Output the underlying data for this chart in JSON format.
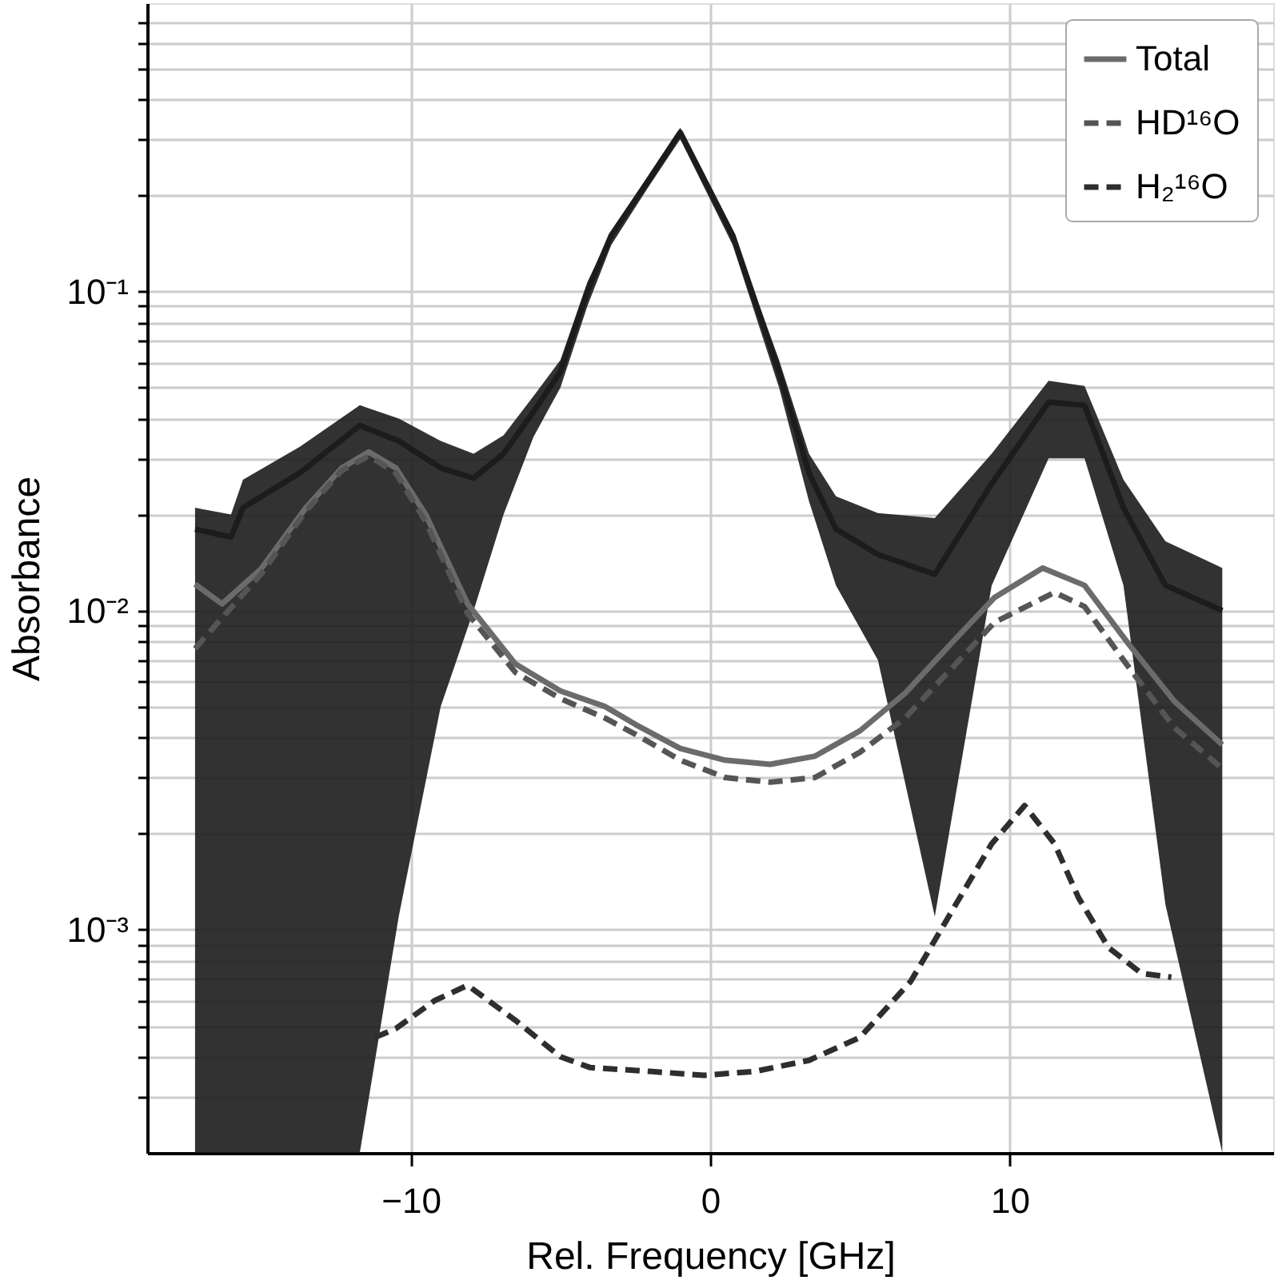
{
  "chart_data": {
    "type": "line",
    "xlabel": "Rel. Frequency [GHz]",
    "ylabel": "Absorbance",
    "xlim": [
      -18.8,
      18.8
    ],
    "xticks": [
      -10,
      0,
      10
    ],
    "ylim": [
      0.0002,
      0.8
    ],
    "yticks": [
      {
        "value": 0.0003,
        "label": null
      },
      {
        "value": 0.0004,
        "label": null
      },
      {
        "value": 0.0005,
        "label": null
      },
      {
        "value": 0.0006,
        "label": null
      },
      {
        "value": 0.0007,
        "label": null
      },
      {
        "value": 0.0008,
        "label": null
      },
      {
        "value": 0.0009,
        "label": null
      },
      {
        "value": 0.001,
        "label": "10⁻³"
      },
      {
        "value": 0.002,
        "label": null
      },
      {
        "value": 0.003,
        "label": null
      },
      {
        "value": 0.004,
        "label": null
      },
      {
        "value": 0.005,
        "label": null
      },
      {
        "value": 0.006,
        "label": null
      },
      {
        "value": 0.007,
        "label": null
      },
      {
        "value": 0.008,
        "label": null
      },
      {
        "value": 0.009,
        "label": null
      },
      {
        "value": 0.01,
        "label": "10⁻²"
      },
      {
        "value": 0.02,
        "label": null
      },
      {
        "value": 0.03,
        "label": null
      },
      {
        "value": 0.04,
        "label": null
      },
      {
        "value": 0.05,
        "label": null
      },
      {
        "value": 0.06,
        "label": null
      },
      {
        "value": 0.07,
        "label": null
      },
      {
        "value": 0.08,
        "label": null
      },
      {
        "value": 0.09,
        "label": null
      },
      {
        "value": 0.1,
        "label": "10⁻¹"
      },
      {
        "value": 0.2,
        "label": null
      },
      {
        "value": 0.3,
        "label": null
      },
      {
        "value": 0.4,
        "label": null
      },
      {
        "value": 0.5,
        "label": null
      },
      {
        "value": 0.6,
        "label": null
      },
      {
        "value": 0.7,
        "label": null
      }
    ],
    "log": "y",
    "grid": true,
    "legend": "top right",
    "series": [
      {
        "type": "line",
        "color": "#1c1c1c",
        "line_style": "solid",
        "x": [
          -17.2,
          -16,
          -15.6,
          -13.7,
          -11.7,
          -10.4,
          -9,
          -7.9,
          -6.9,
          -5.9,
          -5.0,
          -4.1,
          -3.3,
          -2.1,
          -1.0,
          0.75,
          2.3,
          3.3,
          4.2,
          5.6,
          7.5,
          9.4,
          11.3,
          12.5,
          13.8,
          15.2,
          17.1
        ],
        "values": [
          0.018,
          0.017,
          0.021,
          0.027,
          0.038,
          0.034,
          0.028,
          0.026,
          0.031,
          0.042,
          0.056,
          0.1,
          0.15,
          0.22,
          0.315,
          0.15,
          0.056,
          0.027,
          0.018,
          0.015,
          0.013,
          0.025,
          0.045,
          0.044,
          0.021,
          0.012,
          0.01
        ],
        "lower": [
          0.0002,
          0.0002,
          0.0002,
          0.0002,
          0.0002,
          0.0011,
          0.005,
          0.01,
          0.02,
          0.035,
          0.05,
          0.09,
          0.14,
          0.21,
          0.3,
          0.14,
          0.05,
          0.022,
          0.012,
          0.007,
          0.0011,
          0.012,
          0.03,
          0.03,
          0.012,
          0.0012,
          0.0002
        ],
        "upper": [
          0.021,
          0.02,
          0.0257,
          0.0326,
          0.044,
          0.04,
          0.034,
          0.031,
          0.0354,
          0.047,
          0.061,
          0.107,
          0.154,
          0.228,
          0.326,
          0.154,
          0.061,
          0.031,
          0.0228,
          0.0202,
          0.0195,
          0.031,
          0.0525,
          0.0506,
          0.0257,
          0.0165,
          0.0136
        ]
      },
      {
        "type": "line",
        "name": "Total",
        "color": "#6b6b6b",
        "line_style": "solid",
        "x": [
          -17.2,
          -16.3,
          -15,
          -13.5,
          -12.3,
          -11.4,
          -10.5,
          -9.5,
          -8.1,
          -6.5,
          -5,
          -3.5,
          -2.5,
          -1,
          0.5,
          2,
          3.5,
          5,
          6.5,
          8,
          9.5,
          11.1,
          12.5,
          14,
          15.5,
          17.1
        ],
        "values": [
          0.0121,
          0.0105,
          0.0135,
          0.021,
          0.028,
          0.0314,
          0.028,
          0.02,
          0.0105,
          0.0068,
          0.0056,
          0.005,
          0.0044,
          0.0037,
          0.0034,
          0.0033,
          0.0035,
          0.0042,
          0.0055,
          0.0078,
          0.011,
          0.0136,
          0.012,
          0.0078,
          0.0052,
          0.0038
        ]
      },
      {
        "type": "line",
        "name": "HD¹⁶O",
        "color": "#555555",
        "line_style": "dashed",
        "x": [
          -17.2,
          -16.3,
          -15,
          -13.5,
          -12.3,
          -11.4,
          -10.5,
          -9.5,
          -8.1,
          -6.5,
          -5,
          -3.5,
          -2.5,
          -1,
          0.5,
          2,
          3.5,
          5,
          6.5,
          8,
          9.5,
          11.5,
          12.5,
          14,
          15.5,
          17.1
        ],
        "values": [
          0.0076,
          0.0095,
          0.013,
          0.0205,
          0.0275,
          0.0305,
          0.027,
          0.019,
          0.0098,
          0.0064,
          0.0053,
          0.0046,
          0.0041,
          0.0034,
          0.003,
          0.0029,
          0.003,
          0.0036,
          0.0046,
          0.0065,
          0.0092,
          0.0114,
          0.0103,
          0.0066,
          0.0043,
          0.0032
        ]
      },
      {
        "type": "line",
        "name": "H₂¹⁶O",
        "color": "#2e2e2e",
        "line_style": "dashed",
        "x": [
          -11.2,
          -10.5,
          -9.2,
          -8.1,
          -6.5,
          -5,
          -4,
          -2,
          -0.2,
          1.5,
          3.3,
          5,
          6.7,
          8.2,
          9.4,
          10.5,
          11.5,
          12.3,
          13.3,
          14.4,
          15.4
        ],
        "values": [
          0.00046,
          0.00049,
          0.0006,
          0.00067,
          0.00052,
          0.0004,
          0.00037,
          0.00036,
          0.00035,
          0.00036,
          0.00039,
          0.00046,
          0.00069,
          0.0012,
          0.00186,
          0.00245,
          0.00186,
          0.00126,
          0.00088,
          0.00073,
          0.00071
        ]
      }
    ]
  }
}
